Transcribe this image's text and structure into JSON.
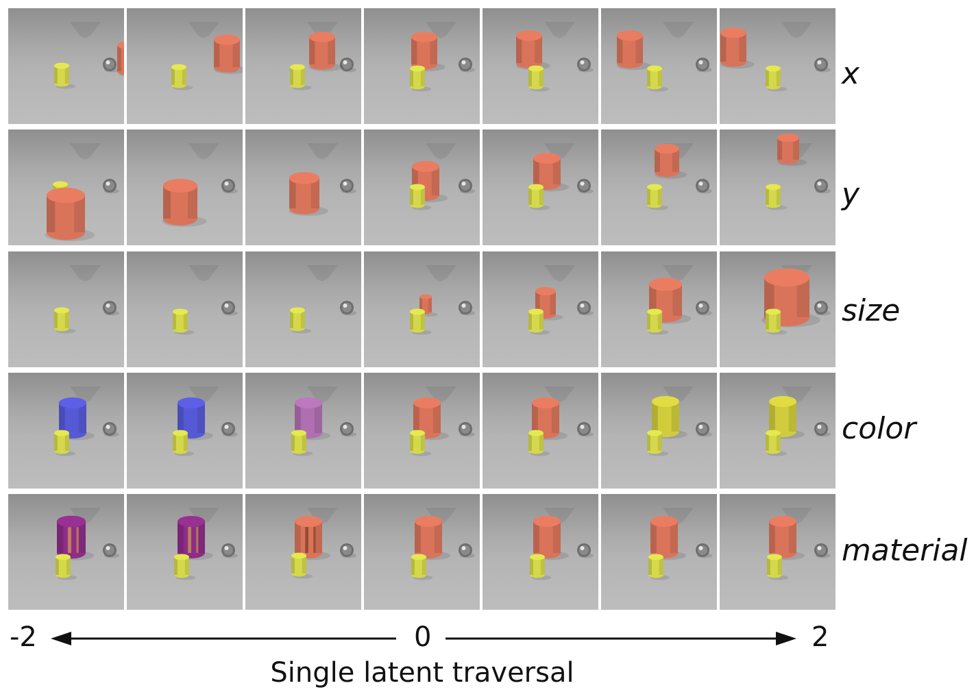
{
  "figure": {
    "rows": [
      {
        "label": "x",
        "factor": "x"
      },
      {
        "label": "y",
        "factor": "y"
      },
      {
        "label": "size",
        "factor": "size"
      },
      {
        "label": "color",
        "factor": "color"
      },
      {
        "label": "material",
        "factor": "material"
      }
    ],
    "columns": 7,
    "axis": {
      "min_label": "-2",
      "mid_label": "0",
      "max_label": "2"
    },
    "caption": "Single latent traversal"
  },
  "colors": {
    "red_cylinder": "#d9745a",
    "yellow_cylinder": "#d4d84a",
    "metal_sphere": "#6e6e6e",
    "blue_cylinder": "#5659d6",
    "purple_cylinder": "#b06fb0",
    "yellow_large_cylinder": "#d0cc3c",
    "magenta_metal": "#8d2d88",
    "axis": "#111111"
  }
}
